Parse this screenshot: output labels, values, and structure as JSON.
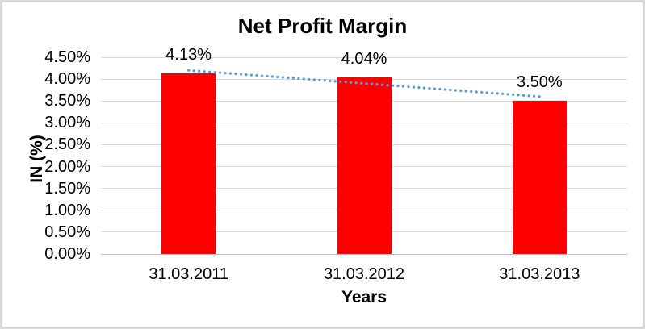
{
  "chart_data": {
    "type": "bar",
    "title": "Net Profit Margin",
    "xlabel": "Years",
    "ylabel": "IN (%)",
    "categories": [
      "31.03.2011",
      "31.03.2012",
      "31.03.2013"
    ],
    "values": [
      4.13,
      4.04,
      3.5
    ],
    "data_labels": [
      "4.13%",
      "4.04%",
      "3.50%"
    ],
    "ylim": [
      0,
      4.5
    ],
    "ytick_step": 0.5,
    "ytick_labels": [
      "0.00%",
      "0.50%",
      "1.00%",
      "1.50%",
      "2.00%",
      "2.50%",
      "3.00%",
      "3.50%",
      "4.00%",
      "4.50%"
    ],
    "grid": true,
    "legend": false,
    "colors": {
      "bar": "#FF0000",
      "trendline": "#5B9BD5",
      "gridline": "#D9D9D9",
      "axis_line": "#BFBFBF",
      "text": "#000000",
      "frame_border": "#D8D8D8"
    },
    "trendline": {
      "shape": "linear",
      "style": "dotted",
      "endpoints_pct": [
        4.2,
        3.6
      ]
    }
  }
}
